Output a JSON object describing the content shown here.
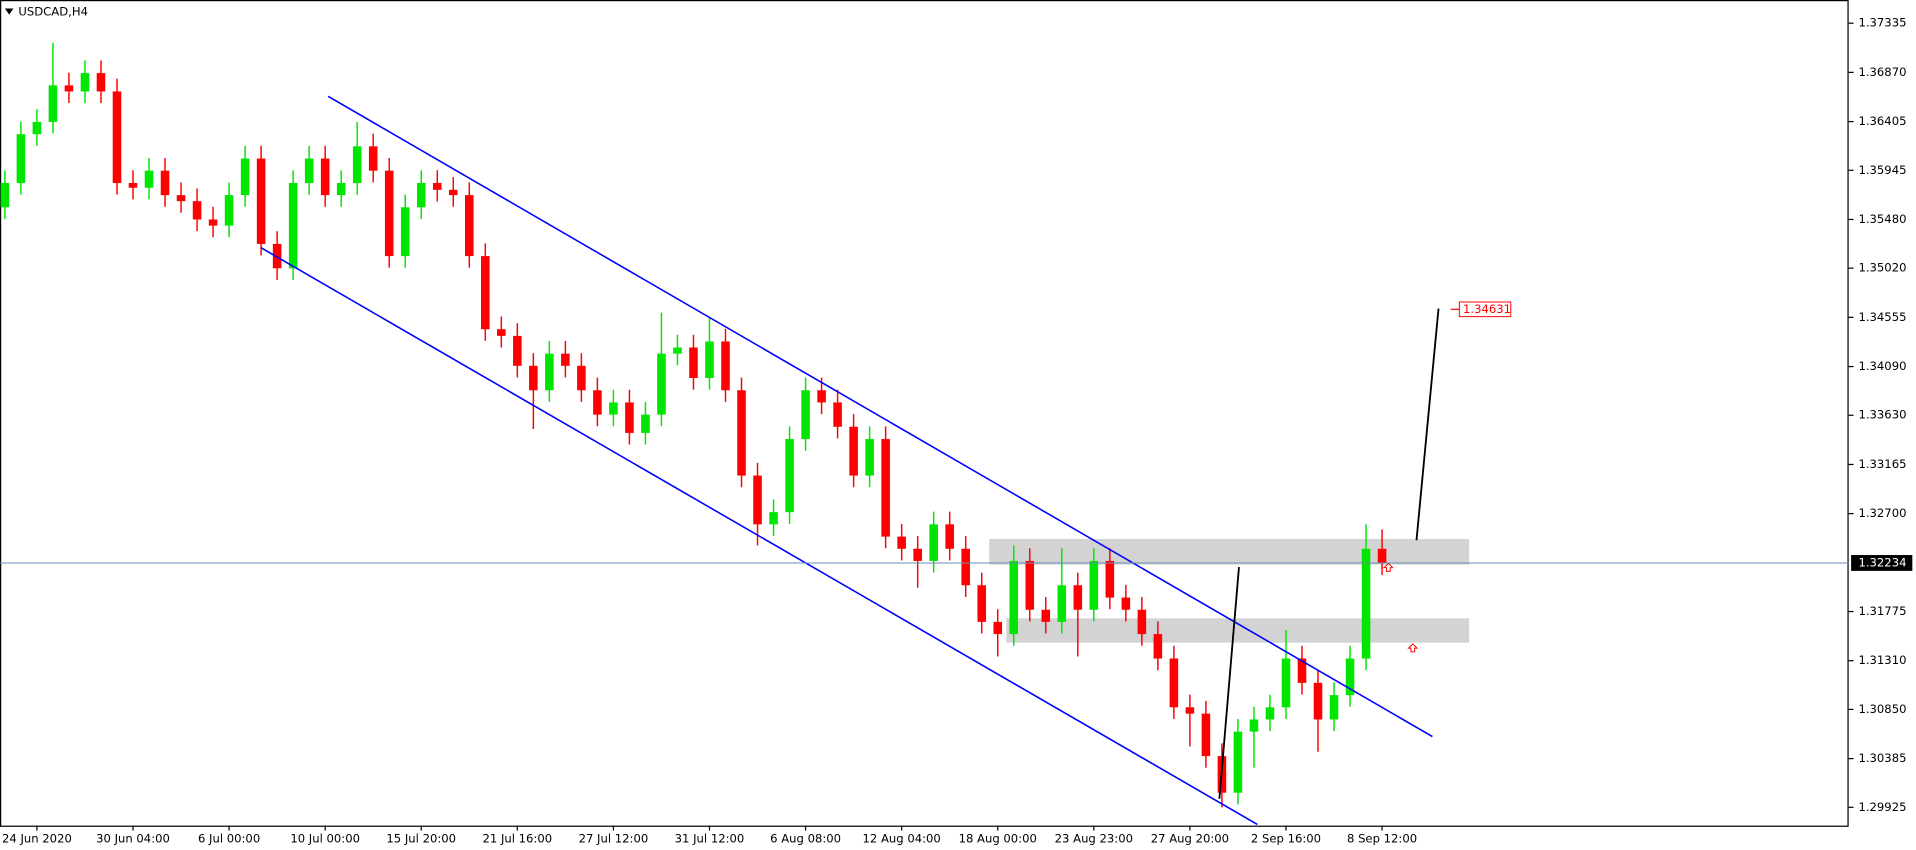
{
  "chart_data": {
    "type": "candlestick",
    "title": "USDCAD,H4",
    "up_color": "#00e600",
    "down_color": "#ff0000",
    "current_price": 1.32234,
    "target_price": 1.34631,
    "categories": [
      null,
      null,
      "24 Jun 2020",
      null,
      null,
      null,
      null,
      null,
      "30 Jun 04:00",
      null,
      null,
      null,
      null,
      null,
      "6 Jul 00:00",
      null,
      null,
      null,
      null,
      null,
      "10 Jul 00:00",
      null,
      null,
      null,
      null,
      null,
      "15 Jul 20:00",
      null,
      null,
      null,
      null,
      null,
      "21 Jul 16:00",
      null,
      null,
      null,
      null,
      null,
      "27 Jul 12:00",
      null,
      null,
      null,
      null,
      null,
      "31 Jul 12:00",
      null,
      null,
      null,
      null,
      null,
      "6 Aug 08:00",
      null,
      null,
      null,
      null,
      null,
      "12 Aug 04:00",
      null,
      null,
      null,
      null,
      null,
      "18 Aug 00:00",
      null,
      null,
      null,
      null,
      null,
      "23 Aug 23:00",
      null,
      null,
      null,
      null,
      null,
      "27 Aug 20:00",
      null,
      null,
      null,
      null,
      null,
      "2 Sep 16:00",
      null,
      null,
      null,
      null,
      null,
      "8 Sep 12:00"
    ],
    "open": [
      1.35595,
      1.35825,
      1.36286,
      1.36402,
      1.36747,
      1.3669,
      1.36863,
      1.3669,
      1.35825,
      1.3578,
      1.35941,
      1.3571,
      1.35653,
      1.3548,
      1.35422,
      1.3571,
      1.36056,
      1.35249,
      1.35019,
      1.35825,
      1.36056,
      1.3571,
      1.35825,
      1.36171,
      1.35941,
      1.35134,
      1.35595,
      1.35825,
      1.3576,
      1.3571,
      1.35134,
      1.34443,
      1.3438,
      1.34097,
      1.33866,
      1.34212,
      1.34097,
      1.33866,
      1.33636,
      1.33751,
      1.33463,
      1.33636,
      1.34212,
      1.3427,
      1.33982,
      1.34327,
      1.33866,
      1.3306,
      1.32599,
      1.32714,
      1.33405,
      1.33866,
      1.33751,
      1.33521,
      1.3306,
      1.33405,
      1.32483,
      1.32368,
      1.32253,
      1.32599,
      1.32368,
      1.32023,
      1.31677,
      1.31562,
      1.32253,
      1.31792,
      1.31677,
      1.32023,
      1.31792,
      1.32253,
      1.31907,
      1.31792,
      1.31562,
      1.31331,
      1.3087,
      1.3081,
      1.30409,
      1.30063,
      1.3064,
      1.30755,
      1.3087,
      1.31331,
      1.31101,
      1.30755,
      1.30985,
      1.31331,
      1.32368
    ],
    "high": [
      1.35945,
      1.36406,
      1.36522,
      1.3715,
      1.36867,
      1.36983,
      1.36983,
      1.3681,
      1.35945,
      1.36061,
      1.36061,
      1.3583,
      1.35773,
      1.356,
      1.3583,
      1.36176,
      1.36176,
      1.35369,
      1.35945,
      1.36176,
      1.36176,
      1.35945,
      1.364,
      1.36291,
      1.36061,
      1.35715,
      1.35945,
      1.35945,
      1.3588,
      1.3583,
      1.35254,
      1.34563,
      1.345,
      1.34217,
      1.34332,
      1.34332,
      1.34217,
      1.33986,
      1.33871,
      1.33871,
      1.33756,
      1.346,
      1.3439,
      1.3439,
      1.3455,
      1.34447,
      1.33986,
      1.3318,
      1.32834,
      1.33525,
      1.33986,
      1.33986,
      1.33871,
      1.33641,
      1.33525,
      1.33525,
      1.32603,
      1.32488,
      1.32719,
      1.32719,
      1.32488,
      1.32143,
      1.31797,
      1.324,
      1.32373,
      1.31912,
      1.32373,
      1.32143,
      1.32373,
      1.32373,
      1.32027,
      1.31912,
      1.31682,
      1.31451,
      1.3099,
      1.3093,
      1.30529,
      1.3076,
      1.30875,
      1.3099,
      1.316,
      1.31451,
      1.31221,
      1.31105,
      1.31451,
      1.326,
      1.3255
    ],
    "low": [
      1.35485,
      1.35715,
      1.36176,
      1.36292,
      1.3658,
      1.3658,
      1.3658,
      1.35715,
      1.3567,
      1.3567,
      1.356,
      1.35543,
      1.3537,
      1.35312,
      1.35312,
      1.356,
      1.35139,
      1.34909,
      1.34909,
      1.35715,
      1.356,
      1.356,
      1.35715,
      1.35831,
      1.35024,
      1.35024,
      1.35485,
      1.3565,
      1.356,
      1.35024,
      1.34333,
      1.3427,
      1.33987,
      1.335,
      1.33756,
      1.33987,
      1.33756,
      1.33526,
      1.33526,
      1.33353,
      1.33353,
      1.33526,
      1.34102,
      1.33872,
      1.33872,
      1.33756,
      1.3295,
      1.324,
      1.32489,
      1.32604,
      1.33295,
      1.33641,
      1.33411,
      1.3295,
      1.3295,
      1.32373,
      1.32258,
      1.32,
      1.32143,
      1.32258,
      1.31913,
      1.31567,
      1.3135,
      1.31452,
      1.31682,
      1.31567,
      1.31567,
      1.3135,
      1.31682,
      1.31797,
      1.31682,
      1.31452,
      1.31221,
      1.3076,
      1.305,
      1.30299,
      1.29925,
      1.29953,
      1.303,
      1.30645,
      1.3076,
      1.30991,
      1.3045,
      1.30645,
      1.30875,
      1.31221,
      1.3212
    ],
    "close": [
      1.35825,
      1.36286,
      1.36402,
      1.36747,
      1.3669,
      1.36863,
      1.3669,
      1.35825,
      1.3578,
      1.35941,
      1.3571,
      1.35653,
      1.3548,
      1.35422,
      1.3571,
      1.36056,
      1.35249,
      1.35019,
      1.35825,
      1.36056,
      1.3571,
      1.35825,
      1.36171,
      1.35941,
      1.35134,
      1.35595,
      1.35825,
      1.3576,
      1.3571,
      1.35134,
      1.34443,
      1.3438,
      1.34097,
      1.33866,
      1.34212,
      1.34097,
      1.33866,
      1.33636,
      1.33751,
      1.33463,
      1.33636,
      1.34212,
      1.3427,
      1.33982,
      1.34327,
      1.33866,
      1.3306,
      1.32599,
      1.32714,
      1.33405,
      1.33866,
      1.33751,
      1.33521,
      1.3306,
      1.33405,
      1.32483,
      1.32368,
      1.32253,
      1.32599,
      1.32368,
      1.32023,
      1.31677,
      1.31562,
      1.32253,
      1.31792,
      1.31677,
      1.32023,
      1.31792,
      1.32253,
      1.31907,
      1.31792,
      1.31562,
      1.31331,
      1.3087,
      1.3081,
      1.30409,
      1.30063,
      1.3064,
      1.30755,
      1.3087,
      1.31331,
      1.31101,
      1.30755,
      1.30985,
      1.31331,
      1.32368,
      1.3223
    ],
    "ylim": [
      1.29752,
      1.37554
    ],
    "yticks": [
      1.37335,
      {
        "value": 1.3687,
        "label": "1.36870"
      },
      1.36405,
      1.35945,
      {
        "value": 1.3548,
        "label": "1.35480"
      },
      {
        "value": 1.3502,
        "label": "1.35020"
      },
      1.34555,
      {
        "value": 1.3409,
        "label": "1.34090"
      },
      {
        "value": 1.3363,
        "label": "1.33630"
      },
      1.33165,
      {
        "value": 1.327,
        "label": "1.32700"
      },
      1.31775,
      {
        "value": 1.3131,
        "label": "1.31310"
      },
      {
        "value": 1.3085,
        "label": "1.30850"
      },
      1.30385,
      1.29925
    ]
  }
}
